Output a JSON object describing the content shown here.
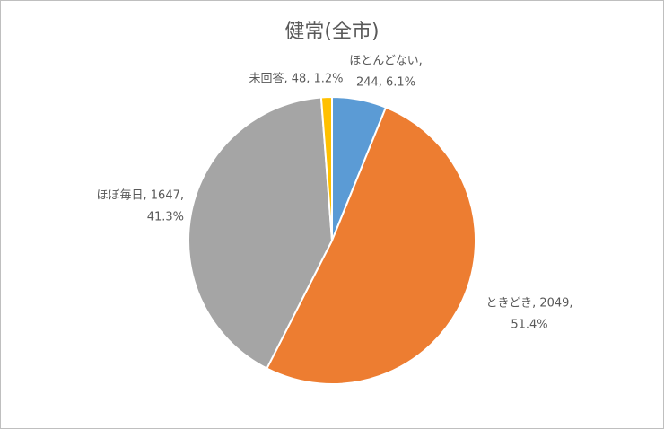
{
  "chart_data": {
    "type": "pie",
    "title": "健常(全市)",
    "categories": [
      "ほとんどない",
      "ときどき",
      "ほぼ毎日",
      "未回答"
    ],
    "values": [
      244,
      2049,
      1647,
      48
    ],
    "value_labels": [
      [
        "ほとんどない,",
        "244, 6.1%"
      ],
      [
        "ときどき, 2049,",
        "51.4%"
      ],
      [
        "ほぼ毎日, 1647,",
        "41.3%"
      ],
      [
        "未回答, 48, 1.2%"
      ]
    ],
    "colors": [
      "#5b9bd5",
      "#ed7d31",
      "#a5a5a5",
      "#ffc000"
    ]
  }
}
